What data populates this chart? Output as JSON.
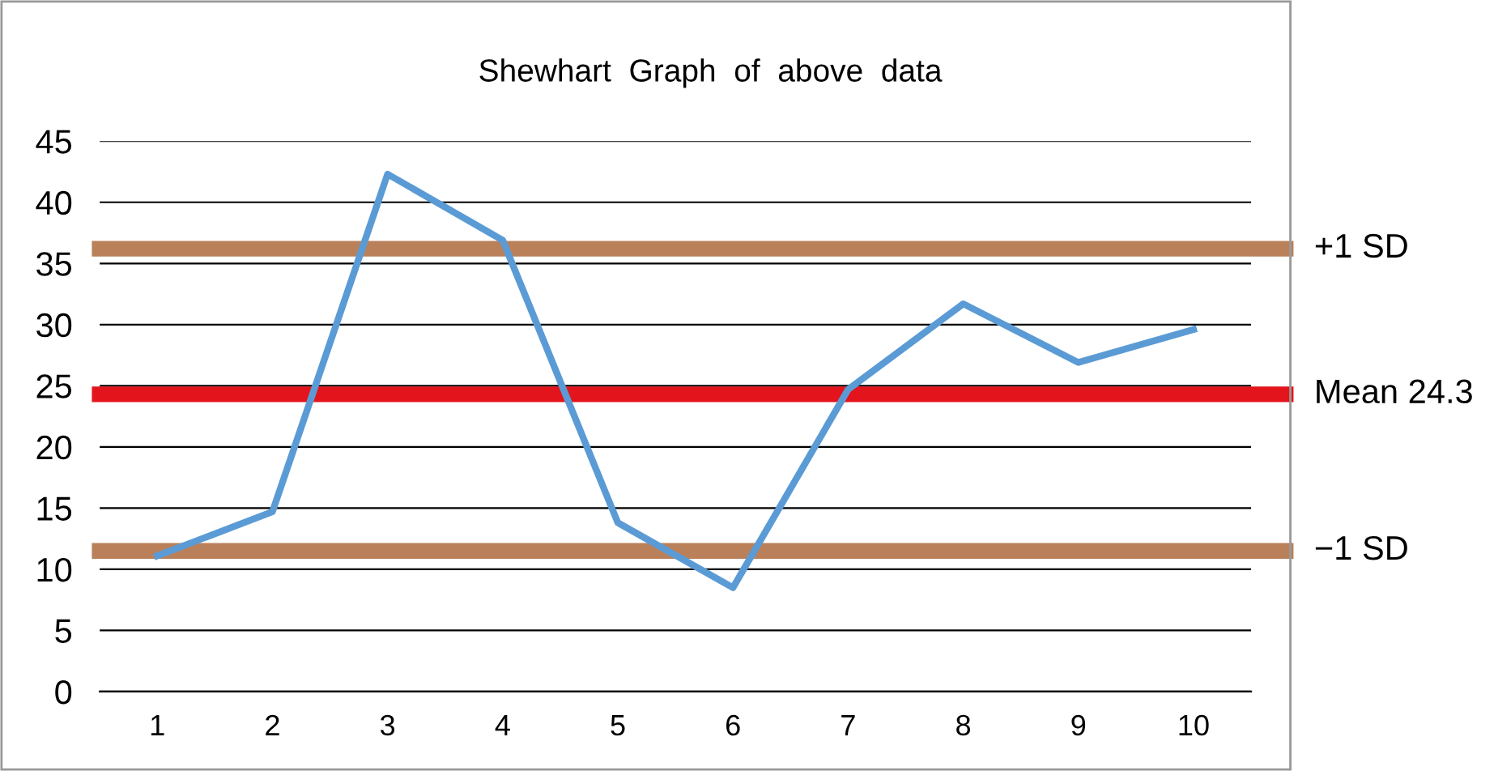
{
  "chart_data": {
    "type": "line",
    "title": "Shewhart  Graph  of  above  data",
    "categories": [
      "1",
      "2",
      "3",
      "4",
      "5",
      "6",
      "7",
      "8",
      "9",
      "10"
    ],
    "series": [
      {
        "color": "#5b9bd5",
        "values": [
          11.1,
          14.7,
          42.3,
          36.9,
          13.8,
          8.5,
          24.7,
          31.7,
          26.9,
          29.6
        ]
      }
    ],
    "ylim": [
      0,
      45
    ],
    "yticks": [
      0,
      5,
      10,
      15,
      20,
      25,
      30,
      35,
      40,
      45
    ],
    "grid": "y",
    "marker": "none",
    "line_style": "solid",
    "ref_lines": [
      {
        "axis": "y",
        "value": 36.2,
        "label": "+1 SD",
        "color": "#b9805a"
      },
      {
        "axis": "y",
        "value": 24.3,
        "label": "Mean 24.3",
        "color": "#e3141b"
      },
      {
        "axis": "y",
        "value": 11.5,
        "label": "−1 SD",
        "color": "#b9805a"
      }
    ]
  }
}
